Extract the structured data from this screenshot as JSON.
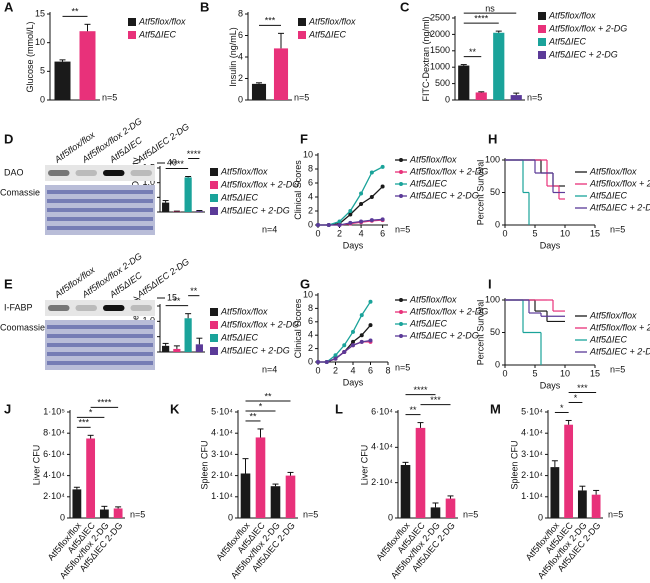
{
  "chart_data": [
    {
      "type": "bar",
      "label": "A",
      "ylabel": "Glucose (mmol/L)",
      "categories": [
        "Atf5flox/flox",
        "Atf5ΔIEC"
      ],
      "values": [
        6.7,
        12
      ],
      "errors": [
        0.3,
        1.2
      ],
      "colors": [
        "#1a1a1a",
        "#e8317a"
      ],
      "ylim": [
        0,
        15
      ],
      "yticks": [
        0,
        5,
        10,
        15
      ],
      "legend": true,
      "brackets": [
        {
          "between": [
            0,
            1
          ],
          "label": "**"
        }
      ],
      "note": "n=5"
    },
    {
      "type": "bar",
      "label": "B",
      "ylabel": "Insulin (ng/mL)",
      "categories": [
        "Atf5flox/flox",
        "Atf5ΔIEC"
      ],
      "values": [
        1.5,
        4.8
      ],
      "errors": [
        0.1,
        1.4
      ],
      "colors": [
        "#1a1a1a",
        "#e8317a"
      ],
      "ylim": [
        0,
        8
      ],
      "yticks": [
        0,
        2,
        4,
        6,
        8
      ],
      "legend": true,
      "brackets": [
        {
          "between": [
            0,
            1
          ],
          "label": "***"
        }
      ],
      "note": "n=5"
    },
    {
      "type": "bar",
      "label": "C",
      "ylabel": "FITC-Dextran (ng/ml)",
      "categories": [
        "Atf5flox/flox",
        "Atf5flox/flox + 2-DG",
        "Atf5ΔIEC",
        "Atf5ΔIEC + 2-DG"
      ],
      "values": [
        1050,
        230,
        2050,
        150
      ],
      "errors": [
        30,
        20,
        50,
        60
      ],
      "colors": [
        "#1a1a1a",
        "#e8317a",
        "#1aa39a",
        "#5b3a98"
      ],
      "ylim": [
        0,
        2500
      ],
      "yticks": [
        0,
        500,
        1000,
        1500,
        2000,
        2500
      ],
      "legend": true,
      "brackets": [
        {
          "between": [
            0,
            1
          ],
          "label": "**"
        },
        {
          "between": [
            0,
            2
          ],
          "label": "****"
        },
        {
          "between": [
            0,
            3
          ],
          "label": "ns"
        }
      ],
      "note": "n=5"
    },
    {
      "type": "bar",
      "label": "D",
      "ylabel": "Relative Density",
      "categories": [
        "Atf5flox/flox",
        "Atf5flox/flox + 2-DG",
        "Atf5ΔIEC",
        "Atf5ΔIEC + 2-DG"
      ],
      "values": [
        0.32,
        0.02,
        1.18,
        0.03
      ],
      "errors": [
        0.07,
        0.01,
        0.03,
        0.02
      ],
      "colors": [
        "#1a1a1a",
        "#e8317a",
        "#1aa39a",
        "#5b3a98"
      ],
      "ylim": [
        0,
        1.5
      ],
      "yticks": [
        {
          "value": 0,
          "label": "0.0"
        },
        0.5,
        {
          "value": 1,
          "label": "1.0"
        },
        1.5
      ],
      "legend": true,
      "brackets": [
        {
          "between": [
            0,
            2
          ],
          "label": "****"
        },
        {
          "between": [
            2,
            3
          ],
          "label": "****"
        }
      ],
      "note": "n=4",
      "blot": {
        "lanes": [
          "Atf5flox/flox",
          "Atf5flox/flox 2-DG",
          "Atf5ΔIEC",
          "Atf5ΔIEC 2-DG"
        ],
        "rows": [
          "DAO",
          "Comassie"
        ],
        "marker": "40"
      }
    },
    {
      "type": "line",
      "label": "F",
      "ylabel": "Clinical Scores",
      "xlabel": "Days",
      "x": [
        0,
        1,
        2,
        3,
        4,
        5,
        6
      ],
      "xlim": [
        0,
        6.5
      ],
      "xticks": [
        0,
        2,
        4,
        6
      ],
      "ylim": [
        0,
        10
      ],
      "yticks": [
        0,
        2,
        4,
        6,
        8,
        10
      ],
      "note": "n=5",
      "series": [
        {
          "name": "Atf5flox/flox",
          "color": "#1a1a1a",
          "values": [
            0,
            0,
            0.2,
            1.5,
            3,
            4,
            5.5
          ]
        },
        {
          "name": "Atf5flox/flox + 2-DG",
          "color": "#e8317a",
          "values": [
            0,
            0,
            0,
            0.2,
            0.4,
            0.6,
            0.7
          ]
        },
        {
          "name": "Atf5ΔIEC",
          "color": "#1aa39a",
          "values": [
            0,
            0,
            0.5,
            2,
            4.5,
            7.5,
            8.3
          ]
        },
        {
          "name": "Atf5ΔIEC + 2-DG",
          "color": "#5b3a98",
          "values": [
            0,
            0,
            0,
            0.3,
            0.5,
            0.7,
            0.8
          ]
        }
      ]
    },
    {
      "type": "survival",
      "label": "H",
      "ylabel": "Percent Survival",
      "xlabel": "Days",
      "xlim": [
        0,
        15
      ],
      "xticks": [
        0,
        5,
        10,
        15
      ],
      "ylim": [
        0,
        100
      ],
      "yticks": [
        0,
        50,
        100
      ],
      "note": "n=5",
      "series": [
        {
          "name": "Atf5flox/flox",
          "color": "#1a1a1a",
          "x": [
            0,
            6,
            8,
            10
          ],
          "values": [
            100,
            80,
            60,
            60
          ]
        },
        {
          "name": "Atf5flox/flox + 2-DG",
          "color": "#e8317a",
          "x": [
            0,
            7,
            9,
            10
          ],
          "values": [
            100,
            60,
            40,
            40
          ]
        },
        {
          "name": "Atf5ΔIEC",
          "color": "#1aa39a",
          "x": [
            0,
            3,
            4
          ],
          "values": [
            100,
            50,
            0
          ]
        },
        {
          "name": "Atf5ΔIEC + 2-DG",
          "color": "#5b3a98",
          "x": [
            0,
            5,
            8,
            10
          ],
          "values": [
            100,
            80,
            50,
            50
          ]
        }
      ]
    },
    {
      "type": "bar",
      "label": "E",
      "ylabel": "Relative Density",
      "categories": [
        "Atf5flox/flox",
        "Atf5flox/flox + 2-DG",
        "Atf5ΔIEC",
        "Atf5ΔIEC + 2-DG"
      ],
      "values": [
        0.2,
        0.1,
        1.1,
        0.25
      ],
      "errors": [
        0.08,
        0.1,
        0.15,
        0.2
      ],
      "colors": [
        "#1a1a1a",
        "#e8317a",
        "#1aa39a",
        "#5b3a98"
      ],
      "ylim": [
        0,
        1.5
      ],
      "yticks": [
        {
          "value": 0,
          "label": "0.0"
        },
        0.5,
        {
          "value": 1,
          "label": "1.0"
        },
        1.5
      ],
      "legend": true,
      "brackets": [
        {
          "between": [
            0,
            2
          ],
          "label": "**"
        },
        {
          "between": [
            2,
            3
          ],
          "label": "**"
        }
      ],
      "note": "n=4",
      "blot": {
        "lanes": [
          "Atf5flox/flox",
          "Atf5flox/flox 2-DG",
          "Atf5ΔIEC",
          "Atf5ΔIEC 2-DG"
        ],
        "rows": [
          "I-FABP",
          "Coomassie"
        ],
        "marker": "15"
      }
    },
    {
      "type": "line",
      "label": "G",
      "ylabel": "Clinical Scores",
      "xlabel": "Days",
      "x": [
        0,
        1,
        2,
        3,
        4,
        5,
        6
      ],
      "xlim": [
        0,
        8
      ],
      "xticks": [
        0,
        2,
        4,
        6,
        8
      ],
      "ylim": [
        0,
        10
      ],
      "yticks": [
        0,
        2,
        4,
        6,
        8,
        10
      ],
      "note": "n=5",
      "series": [
        {
          "name": "Atf5flox/flox",
          "color": "#1a1a1a",
          "values": [
            0,
            0,
            0.5,
            1.5,
            3,
            4,
            5.5
          ]
        },
        {
          "name": "Atf5flox/flox + 2-DG",
          "color": "#e8317a",
          "values": [
            0,
            0,
            0.5,
            1.5,
            2.5,
            3,
            3
          ]
        },
        {
          "name": "Atf5ΔIEC",
          "color": "#1aa39a",
          "values": [
            0,
            0,
            1,
            2.5,
            4.5,
            7,
            9
          ]
        },
        {
          "name": "Atf5ΔIEC + 2-DG",
          "color": "#5b3a98",
          "values": [
            0,
            0,
            0.5,
            1.5,
            2.5,
            3,
            3.2
          ]
        }
      ]
    },
    {
      "type": "survival",
      "label": "I",
      "ylabel": "Percent Survival",
      "xlabel": "Days",
      "xlim": [
        0,
        15
      ],
      "xticks": [
        0,
        5,
        10,
        15
      ],
      "ylim": [
        0,
        100
      ],
      "yticks": [
        0,
        50,
        100
      ],
      "note": "n=5",
      "series": [
        {
          "name": "Atf5flox/flox",
          "color": "#1a1a1a",
          "x": [
            0,
            5,
            7,
            10
          ],
          "values": [
            100,
            83,
            67,
            67
          ]
        },
        {
          "name": "Atf5flox/flox + 2-DG",
          "color": "#e8317a",
          "x": [
            0,
            7,
            8,
            10
          ],
          "values": [
            100,
            100,
            83,
            83
          ]
        },
        {
          "name": "Atf5ΔIEC",
          "color": "#1aa39a",
          "x": [
            0,
            3,
            6
          ],
          "values": [
            100,
            50,
            0
          ]
        },
        {
          "name": "Atf5ΔIEC + 2-DG",
          "color": "#5b3a98",
          "x": [
            0,
            4,
            6,
            10
          ],
          "values": [
            100,
            80,
            75,
            75
          ]
        }
      ]
    },
    {
      "type": "bar",
      "label": "J",
      "ylabel": "Liver CFU",
      "categories": [
        "Atf5flox/flox",
        "Atf5ΔIEC",
        "Atf5flox/flox 2-DG",
        "Atf5ΔIEC 2-DG"
      ],
      "values": [
        27000,
        75000,
        8000,
        9000
      ],
      "errors": [
        2000,
        3000,
        3000,
        1500
      ],
      "colors": [
        "#1a1a1a",
        "#e8317a",
        "#1a1a1a",
        "#e8317a"
      ],
      "ylim": [
        0,
        100000
      ],
      "yticks": [
        0,
        {
          "value": 20000,
          "label": "2·10⁴"
        },
        {
          "value": 40000,
          "label": "4·10⁴"
        },
        {
          "value": 60000,
          "label": "6·10⁴"
        },
        {
          "value": 80000,
          "label": "8·10⁴"
        },
        {
          "value": 100000,
          "label": "1·10⁵"
        }
      ],
      "legend": false,
      "brackets": [
        {
          "between": [
            0,
            1
          ],
          "label": "***"
        },
        {
          "between": [
            0,
            2
          ],
          "label": "*"
        },
        {
          "between": [
            1,
            3
          ],
          "label": "****"
        }
      ],
      "note": "n=5"
    },
    {
      "type": "bar",
      "label": "K",
      "ylabel": "Spleen CFU",
      "categories": [
        "Atf5flox/flox",
        "Atf5ΔIEC",
        "Atf5flox/flox 2-DG",
        "Atf5ΔIEC 2-DG"
      ],
      "values": [
        21000,
        38000,
        15000,
        20000
      ],
      "errors": [
        7000,
        4000,
        1000,
        1500
      ],
      "colors": [
        "#1a1a1a",
        "#e8317a",
        "#1a1a1a",
        "#e8317a"
      ],
      "ylim": [
        0,
        50000
      ],
      "yticks": [
        0,
        {
          "value": 10000,
          "label": "1·10⁴"
        },
        {
          "value": 20000,
          "label": "2·10⁴"
        },
        {
          "value": 30000,
          "label": "3·10⁴"
        },
        {
          "value": 40000,
          "label": "4·10⁴"
        },
        {
          "value": 50000,
          "label": "5·10⁴"
        }
      ],
      "legend": false,
      "brackets": [
        {
          "between": [
            0,
            1
          ],
          "label": "**"
        },
        {
          "between": [
            0,
            2
          ],
          "label": "*"
        },
        {
          "between": [
            0,
            3
          ],
          "label": "**"
        }
      ],
      "note": "n=5"
    },
    {
      "type": "bar",
      "label": "L",
      "ylabel": "Liver CFU",
      "categories": [
        "Atf5flox/flox",
        "Atf5ΔIEC",
        "Atf5flox/flox 2-DG",
        "Atf5ΔIEC 2-DG"
      ],
      "values": [
        30000,
        51000,
        6000,
        11000
      ],
      "errors": [
        1500,
        3000,
        2500,
        1500
      ],
      "colors": [
        "#1a1a1a",
        "#e8317a",
        "#1a1a1a",
        "#e8317a"
      ],
      "ylim": [
        0,
        60000
      ],
      "yticks": [
        0,
        {
          "value": 20000,
          "label": "2·10⁴"
        },
        {
          "value": 40000,
          "label": "4·10⁴"
        },
        {
          "value": 60000,
          "label": "6·10⁴"
        }
      ],
      "legend": false,
      "brackets": [
        {
          "between": [
            0,
            1
          ],
          "label": "**"
        },
        {
          "between": [
            1,
            3
          ],
          "label": "***"
        },
        {
          "between": [
            0,
            2
          ],
          "label": "****"
        }
      ],
      "note": "n=5"
    },
    {
      "type": "bar",
      "label": "M",
      "ylabel": "Spleen CFU",
      "categories": [
        "Atf5flox/flox",
        "Atf5ΔIEC",
        "Atf5flox/flox 2-DG",
        "Atf5ΔIEC 2-DG"
      ],
      "values": [
        24000,
        44000,
        13000,
        11000
      ],
      "errors": [
        3000,
        2000,
        2000,
        2000
      ],
      "colors": [
        "#1a1a1a",
        "#e8317a",
        "#1a1a1a",
        "#e8317a"
      ],
      "ylim": [
        0,
        50000
      ],
      "yticks": [
        0,
        {
          "value": 10000,
          "label": "1·10⁴"
        },
        {
          "value": 20000,
          "label": "2·10⁴"
        },
        {
          "value": 30000,
          "label": "3·10⁴"
        },
        {
          "value": 40000,
          "label": "4·10⁴"
        },
        {
          "value": 50000,
          "label": "5·10⁴"
        }
      ],
      "legend": false,
      "brackets": [
        {
          "between": [
            0,
            1
          ],
          "label": "*"
        },
        {
          "between": [
            1,
            2
          ],
          "label": "*"
        },
        {
          "between": [
            1,
            3
          ],
          "label": "***"
        }
      ],
      "note": "n=5"
    }
  ]
}
